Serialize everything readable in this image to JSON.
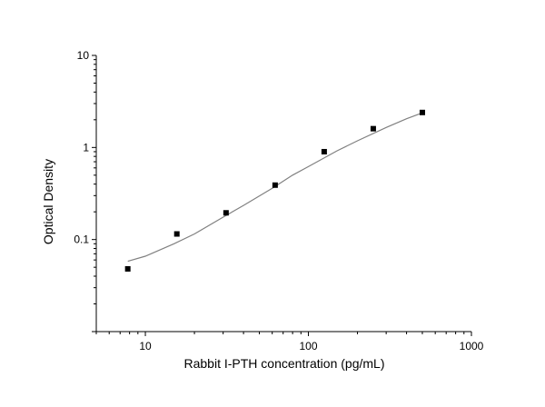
{
  "chart_data": {
    "type": "scatter",
    "title": "",
    "xlabel": "Rabbit I-PTH concentration (pg/mL)",
    "ylabel": "Optical Density",
    "xscale": "log",
    "yscale": "log",
    "xlim": [
      5,
      1000
    ],
    "ylim": [
      0.01,
      10
    ],
    "x_tick_labels": [
      "10",
      "100",
      "1000"
    ],
    "y_tick_labels": [
      "0.1",
      "1",
      "10"
    ],
    "x_major_ticks": [
      10,
      100,
      1000
    ],
    "y_major_ticks": [
      0.1,
      1,
      10
    ],
    "grid": false,
    "legend": "none",
    "series": [
      {
        "type": "scatter",
        "marker": "square",
        "color": "#000000",
        "x": [
          7.8,
          15.6,
          31.25,
          62.5,
          125,
          250,
          500
        ],
        "y": [
          0.048,
          0.115,
          0.195,
          0.39,
          0.9,
          1.6,
          2.4
        ]
      },
      {
        "type": "line",
        "color": "#808080",
        "x": [
          7.8,
          10,
          15,
          20,
          30,
          40,
          60,
          80,
          100,
          150,
          200,
          300,
          400,
          500
        ],
        "y": [
          0.058,
          0.066,
          0.09,
          0.115,
          0.175,
          0.235,
          0.36,
          0.5,
          0.62,
          0.92,
          1.18,
          1.65,
          2.05,
          2.38
        ]
      }
    ]
  }
}
